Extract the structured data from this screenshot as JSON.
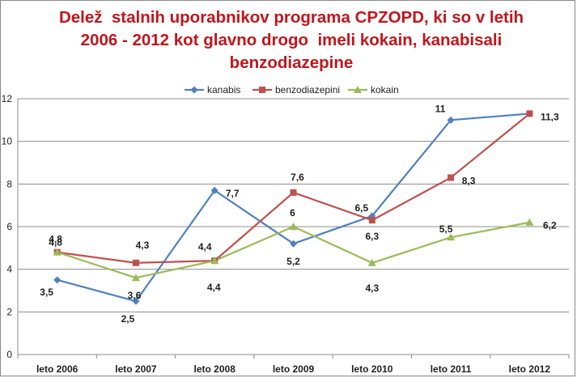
{
  "title_lines": [
    "Delež  stalnih uporabnikov programa CPZOPD, ki so v letih",
    "2006 - 2012 kot glavno drogo  imeli kokain, kanabisali",
    "benzodiazepine"
  ],
  "chart_data": {
    "type": "line",
    "title": "Delež  stalnih uporabnikov programa CPZOPD, ki so v letih 2006 - 2012 kot glavno drogo  imeli kokain, kanabisali benzodiazepine",
    "categories": [
      "leto 2006",
      "leto 2007",
      "leto 2008",
      "leto 2009",
      "leto 2010",
      "leto 2011",
      "leto 2012"
    ],
    "ylim": [
      0,
      12
    ],
    "yticks": [
      "0",
      "2",
      "4",
      "6",
      "8",
      "10",
      "12"
    ],
    "grid": true,
    "legend": "top",
    "series": [
      {
        "name": "kanabis",
        "color": "#4f81bd",
        "marker": "diamond",
        "values": [
          3.5,
          2.5,
          7.7,
          5.2,
          6.5,
          11,
          11.3
        ],
        "labels": [
          "3,5",
          "2,5",
          "7,7",
          "5,2",
          "6,5",
          "11",
          ""
        ]
      },
      {
        "name": "benzodiazepini",
        "color": "#c0504d",
        "marker": "square",
        "values": [
          4.8,
          4.3,
          4.4,
          7.6,
          6.3,
          8.3,
          11.3
        ],
        "labels": [
          "4,8",
          "4,3",
          "4,4",
          "7,6",
          "6,3",
          "8,3",
          "11,3"
        ]
      },
      {
        "name": "kokain",
        "color": "#9bbb59",
        "marker": "triangle",
        "values": [
          4.8,
          3.6,
          4.4,
          6,
          4.3,
          5.5,
          6.2
        ],
        "labels": [
          "4,8",
          "3,6",
          "4,4",
          "6",
          "4,3",
          "5,5",
          "6,2"
        ]
      }
    ]
  }
}
